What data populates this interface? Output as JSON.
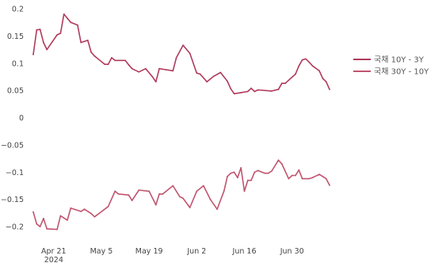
{
  "chart_data": {
    "type": "line",
    "title": "",
    "xlabel": "",
    "ylabel": "",
    "x_range": [
      "2024-04-15",
      "2024-07-11"
    ],
    "ylim": [
      -0.21,
      0.2
    ],
    "y_ticks": [
      {
        "value": 0.2,
        "label": "0.2"
      },
      {
        "value": 0.15,
        "label": "0.15"
      },
      {
        "value": 0.1,
        "label": "0.1"
      },
      {
        "value": 0.05,
        "label": "0.05"
      },
      {
        "value": 0,
        "label": "0"
      },
      {
        "value": -0.05,
        "label": "−0.05"
      },
      {
        "value": -0.1,
        "label": "−0.1"
      },
      {
        "value": -0.15,
        "label": "−0.15"
      },
      {
        "value": -0.2,
        "label": "−0.2"
      }
    ],
    "x_ticks": [
      {
        "date": "2024-04-21",
        "label": "Apr 21",
        "sublabel": "2024"
      },
      {
        "date": "2024-05-05",
        "label": "May 5",
        "sublabel": ""
      },
      {
        "date": "2024-05-19",
        "label": "May 19",
        "sublabel": ""
      },
      {
        "date": "2024-06-02",
        "label": "Jun 2",
        "sublabel": ""
      },
      {
        "date": "2024-06-16",
        "label": "Jun 16",
        "sublabel": ""
      },
      {
        "date": "2024-06-30",
        "label": "Jun 30",
        "sublabel": ""
      }
    ],
    "grid": false,
    "legend_position": "right",
    "series": [
      {
        "name": "국채 10Y - 3Y",
        "color": "#b03a5b",
        "points": [
          [
            "2024-04-15",
            0.116
          ],
          [
            "2024-04-16",
            0.161
          ],
          [
            "2024-04-17",
            0.162
          ],
          [
            "2024-04-18",
            0.138
          ],
          [
            "2024-04-19",
            0.125
          ],
          [
            "2024-04-22",
            0.152
          ],
          [
            "2024-04-23",
            0.155
          ],
          [
            "2024-04-24",
            0.19
          ],
          [
            "2024-04-26",
            0.175
          ],
          [
            "2024-04-28",
            0.17
          ],
          [
            "2024-04-29",
            0.138
          ],
          [
            "2024-05-01",
            0.142
          ],
          [
            "2024-05-02",
            0.12
          ],
          [
            "2024-05-03",
            0.113
          ],
          [
            "2024-05-06",
            0.098
          ],
          [
            "2024-05-07",
            0.098
          ],
          [
            "2024-05-08",
            0.11
          ],
          [
            "2024-05-09",
            0.105
          ],
          [
            "2024-05-12",
            0.105
          ],
          [
            "2024-05-13",
            0.097
          ],
          [
            "2024-05-14",
            0.09
          ],
          [
            "2024-05-16",
            0.084
          ],
          [
            "2024-05-18",
            0.09
          ],
          [
            "2024-05-20",
            0.075
          ],
          [
            "2024-05-21",
            0.066
          ],
          [
            "2024-05-22",
            0.09
          ],
          [
            "2024-05-24",
            0.088
          ],
          [
            "2024-05-26",
            0.086
          ],
          [
            "2024-05-27",
            0.11
          ],
          [
            "2024-05-29",
            0.133
          ],
          [
            "2024-05-31",
            0.118
          ],
          [
            "2024-06-02",
            0.082
          ],
          [
            "2024-06-03",
            0.08
          ],
          [
            "2024-06-05",
            0.066
          ],
          [
            "2024-06-07",
            0.076
          ],
          [
            "2024-06-09",
            0.083
          ],
          [
            "2024-06-11",
            0.067
          ],
          [
            "2024-06-12",
            0.053
          ],
          [
            "2024-06-13",
            0.044
          ],
          [
            "2024-06-15",
            0.046
          ],
          [
            "2024-06-17",
            0.048
          ],
          [
            "2024-06-18",
            0.054
          ],
          [
            "2024-06-19",
            0.048
          ],
          [
            "2024-06-20",
            0.051
          ],
          [
            "2024-06-24",
            0.049
          ],
          [
            "2024-06-26",
            0.052
          ],
          [
            "2024-06-27",
            0.063
          ],
          [
            "2024-06-28",
            0.063
          ],
          [
            "2024-07-01",
            0.08
          ],
          [
            "2024-07-02",
            0.095
          ],
          [
            "2024-07-03",
            0.106
          ],
          [
            "2024-07-04",
            0.108
          ],
          [
            "2024-07-05",
            0.102
          ],
          [
            "2024-07-06",
            0.095
          ],
          [
            "2024-07-08",
            0.086
          ],
          [
            "2024-07-09",
            0.072
          ],
          [
            "2024-07-10",
            0.066
          ],
          [
            "2024-07-11",
            0.052
          ]
        ]
      },
      {
        "name": "국채 30Y - 10Y",
        "color": "#c0546e",
        "points": [
          [
            "2024-04-15",
            -0.173
          ],
          [
            "2024-04-16",
            -0.195
          ],
          [
            "2024-04-17",
            -0.2
          ],
          [
            "2024-04-18",
            -0.185
          ],
          [
            "2024-04-19",
            -0.204
          ],
          [
            "2024-04-22",
            -0.205
          ],
          [
            "2024-04-23",
            -0.18
          ],
          [
            "2024-04-25",
            -0.188
          ],
          [
            "2024-04-26",
            -0.166
          ],
          [
            "2024-04-29",
            -0.172
          ],
          [
            "2024-04-30",
            -0.168
          ],
          [
            "2024-05-02",
            -0.176
          ],
          [
            "2024-05-03",
            -0.182
          ],
          [
            "2024-05-07",
            -0.163
          ],
          [
            "2024-05-09",
            -0.135
          ],
          [
            "2024-05-10",
            -0.14
          ],
          [
            "2024-05-13",
            -0.142
          ],
          [
            "2024-05-14",
            -0.152
          ],
          [
            "2024-05-16",
            -0.133
          ],
          [
            "2024-05-19",
            -0.135
          ],
          [
            "2024-05-21",
            -0.16
          ],
          [
            "2024-05-22",
            -0.14
          ],
          [
            "2024-05-23",
            -0.14
          ],
          [
            "2024-05-26",
            -0.125
          ],
          [
            "2024-05-28",
            -0.145
          ],
          [
            "2024-05-29",
            -0.148
          ],
          [
            "2024-05-31",
            -0.165
          ],
          [
            "2024-06-02",
            -0.135
          ],
          [
            "2024-06-04",
            -0.125
          ],
          [
            "2024-06-06",
            -0.15
          ],
          [
            "2024-06-08",
            -0.168
          ],
          [
            "2024-06-10",
            -0.135
          ],
          [
            "2024-06-11",
            -0.108
          ],
          [
            "2024-06-12",
            -0.102
          ],
          [
            "2024-06-13",
            -0.1
          ],
          [
            "2024-06-14",
            -0.11
          ],
          [
            "2024-06-15",
            -0.092
          ],
          [
            "2024-06-16",
            -0.135
          ],
          [
            "2024-06-17",
            -0.115
          ],
          [
            "2024-06-18",
            -0.115
          ],
          [
            "2024-06-19",
            -0.1
          ],
          [
            "2024-06-20",
            -0.097
          ],
          [
            "2024-06-22",
            -0.102
          ],
          [
            "2024-06-23",
            -0.102
          ],
          [
            "2024-06-24",
            -0.098
          ],
          [
            "2024-06-26",
            -0.078
          ],
          [
            "2024-06-27",
            -0.085
          ],
          [
            "2024-06-29",
            -0.112
          ],
          [
            "2024-06-30",
            -0.106
          ],
          [
            "2024-07-01",
            -0.106
          ],
          [
            "2024-07-02",
            -0.096
          ],
          [
            "2024-07-03",
            -0.112
          ],
          [
            "2024-07-05",
            -0.112
          ],
          [
            "2024-07-06",
            -0.11
          ],
          [
            "2024-07-08",
            -0.104
          ],
          [
            "2024-07-09",
            -0.108
          ],
          [
            "2024-07-10",
            -0.112
          ],
          [
            "2024-07-11",
            -0.124
          ]
        ]
      }
    ]
  }
}
